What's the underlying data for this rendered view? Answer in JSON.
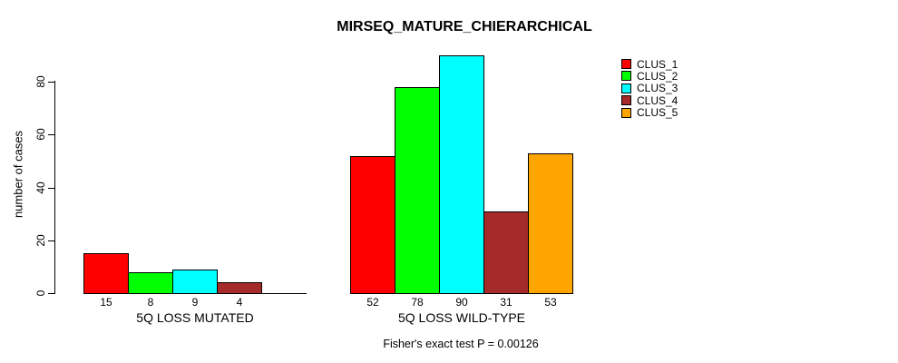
{
  "title": "MIRSEQ_MATURE_CHIERARCHICAL",
  "footer": "Fisher's exact test P = 0.00126",
  "y_axis": {
    "label": "number of cases",
    "ticks": [
      0,
      20,
      40,
      60,
      80
    ]
  },
  "legend": {
    "entries": [
      {
        "label": "CLUS_1",
        "color": "#FF0000"
      },
      {
        "label": "CLUS_2",
        "color": "#00FF00"
      },
      {
        "label": "CLUS_3",
        "color": "#00FFFF"
      },
      {
        "label": "CLUS_4",
        "color": "#A52A2A"
      },
      {
        "label": "CLUS_5",
        "color": "#FFA500"
      }
    ]
  },
  "chart_data": {
    "type": "bar",
    "title": "MIRSEQ_MATURE_CHIERARCHICAL",
    "ylabel": "number of cases",
    "ylim": [
      0,
      93
    ],
    "yticks": [
      0,
      20,
      40,
      60,
      80
    ],
    "grid": false,
    "legend_position": "top-right",
    "categories": [
      "5Q LOSS MUTATED",
      "5Q LOSS WILD-TYPE"
    ],
    "series": [
      {
        "name": "CLUS_1",
        "color": "#FF0000",
        "values": [
          15,
          52
        ]
      },
      {
        "name": "CLUS_2",
        "color": "#00FF00",
        "values": [
          8,
          78
        ]
      },
      {
        "name": "CLUS_3",
        "color": "#00FFFF",
        "values": [
          9,
          90
        ]
      },
      {
        "name": "CLUS_4",
        "color": "#A52A2A",
        "values": [
          4,
          31
        ]
      },
      {
        "name": "CLUS_5",
        "color": "#FFA500",
        "values": [
          0,
          53
        ]
      }
    ],
    "bar_value_labels": "values shown under each bar; zero-value bars unlabeled",
    "annotation": "Fisher's exact test P = 0.00126"
  }
}
